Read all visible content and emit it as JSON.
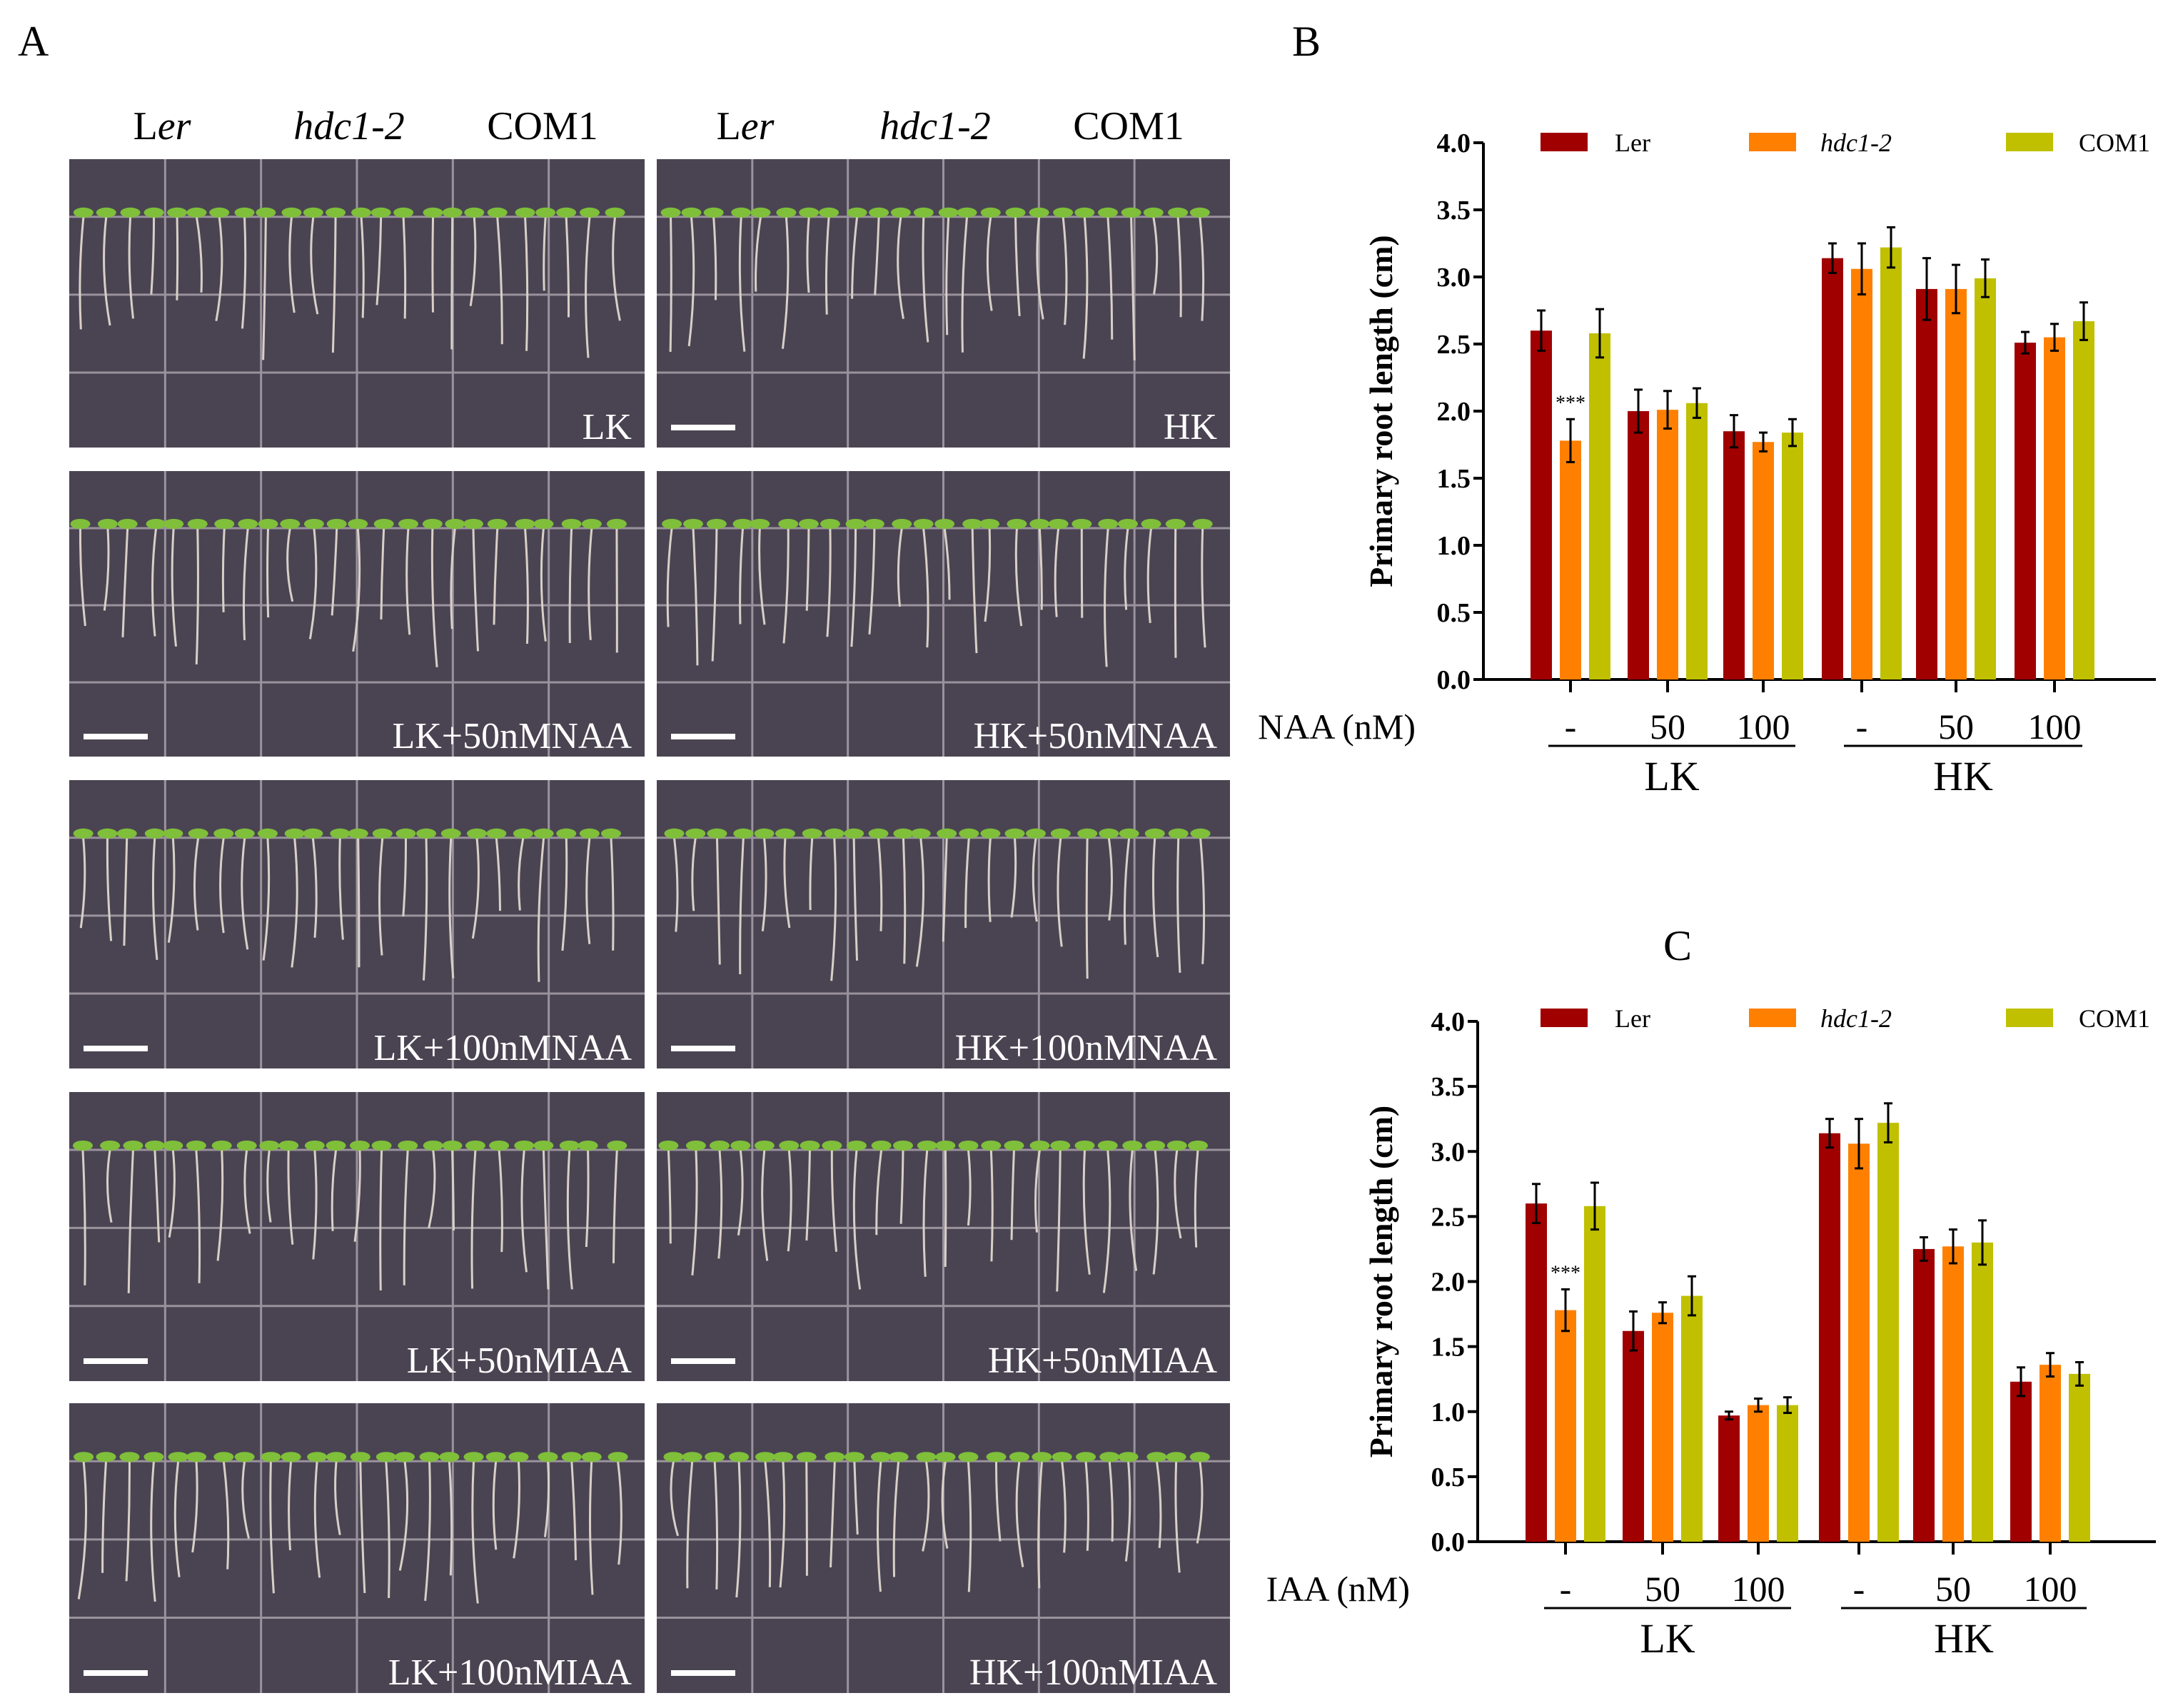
{
  "panel_labels": {
    "a": "A",
    "b": "B",
    "c": "C"
  },
  "photo_panel": {
    "column_headers": [
      {
        "prefix": "L",
        "italic": "er"
      },
      {
        "prefix": "",
        "italic": "hdc1-2"
      },
      {
        "prefix": "COM1",
        "italic": ""
      },
      {
        "prefix": "L",
        "italic": "er"
      },
      {
        "prefix": "",
        "italic": "hdc1-2"
      },
      {
        "prefix": "COM1",
        "italic": ""
      }
    ],
    "condition_labels": [
      [
        "LK",
        "HK"
      ],
      [
        "LK+50nMNAA",
        "HK+50nMNAA"
      ],
      [
        "LK+100nMNAA",
        "HK+100nMNAA"
      ],
      [
        "LK+50nMIAA",
        "HK+50nMIAA"
      ],
      [
        "LK+100nMIAA",
        "HK+100nMIAA"
      ]
    ],
    "plate_color": "#4a4452",
    "grid_color": "#9a929c"
  },
  "chart_data": [
    {
      "type": "bar",
      "panel": "B",
      "ylabel": "Primary root length (cm)",
      "xlabel": "NAA (nM)",
      "ylim": [
        0,
        4.0
      ],
      "yticks": [
        "0.0",
        "0.5",
        "1.0",
        "1.5",
        "2.0",
        "2.5",
        "3.0",
        "3.5",
        "4.0"
      ],
      "categories": [
        "-",
        "50",
        "100",
        "-",
        "50",
        "100"
      ],
      "groups": [
        "LK",
        "HK"
      ],
      "legend_position": "top",
      "series": [
        {
          "name": "Ler",
          "color": "#a00000",
          "values": [
            2.6,
            2.0,
            1.85,
            3.14,
            2.91,
            2.51
          ],
          "errors": [
            0.15,
            0.16,
            0.12,
            0.11,
            0.23,
            0.08
          ]
        },
        {
          "name": "hdc1-2",
          "color": "#ff8000",
          "values": [
            1.78,
            2.01,
            1.77,
            3.06,
            2.91,
            2.55
          ],
          "errors": [
            0.16,
            0.14,
            0.07,
            0.19,
            0.18,
            0.1
          ]
        },
        {
          "name": "COM1",
          "color": "#c0c000",
          "values": [
            2.58,
            2.06,
            1.84,
            3.22,
            2.99,
            2.67
          ],
          "errors": [
            0.18,
            0.11,
            0.1,
            0.15,
            0.14,
            0.14
          ]
        }
      ],
      "annotations": [
        {
          "text": "***",
          "series": 1,
          "category": 0
        }
      ]
    },
    {
      "type": "bar",
      "panel": "C",
      "ylabel": "Primary root length (cm)",
      "xlabel": "IAA (nM)",
      "ylim": [
        0,
        4.0
      ],
      "yticks": [
        "0.0",
        "0.5",
        "1.0",
        "1.5",
        "2.0",
        "2.5",
        "3.0",
        "3.5",
        "4.0"
      ],
      "categories": [
        "-",
        "50",
        "100",
        "-",
        "50",
        "100"
      ],
      "groups": [
        "LK",
        "HK"
      ],
      "legend_position": "top",
      "series": [
        {
          "name": "Ler",
          "color": "#a00000",
          "values": [
            2.6,
            1.62,
            0.97,
            3.14,
            2.25,
            1.23
          ],
          "errors": [
            0.15,
            0.15,
            0.03,
            0.11,
            0.09,
            0.11
          ]
        },
        {
          "name": "hdc1-2",
          "color": "#ff8000",
          "values": [
            1.78,
            1.76,
            1.05,
            3.06,
            2.27,
            1.36
          ],
          "errors": [
            0.16,
            0.08,
            0.05,
            0.19,
            0.13,
            0.09
          ]
        },
        {
          "name": "COM1",
          "color": "#c0c000",
          "values": [
            2.58,
            1.89,
            1.05,
            3.22,
            2.3,
            1.29
          ],
          "errors": [
            0.18,
            0.15,
            0.06,
            0.15,
            0.17,
            0.09
          ]
        }
      ],
      "annotations": [
        {
          "text": "***",
          "series": 1,
          "category": 0
        }
      ]
    }
  ]
}
